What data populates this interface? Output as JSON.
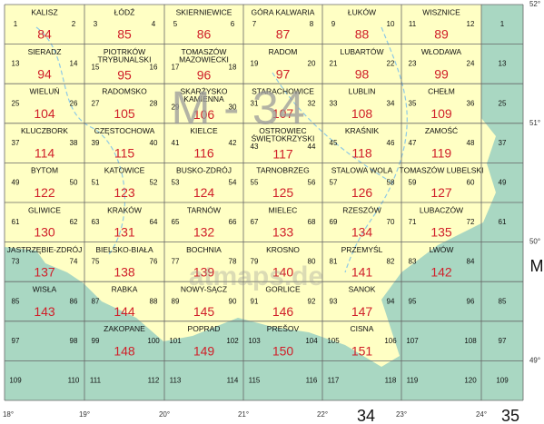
{
  "rows": [
    [
      {
        "name": [
          "KALISZ"
        ],
        "sheet": 84,
        "small": [
          1,
          2
        ]
      },
      {
        "name": [
          "ŁÓDŹ"
        ],
        "sheet": 85,
        "small": [
          3,
          4
        ]
      },
      {
        "name": [
          "SKIERNIEWICE"
        ],
        "sheet": 86,
        "small": [
          5,
          6
        ]
      },
      {
        "name": [
          "GÓRA KALWARIA"
        ],
        "sheet": 87,
        "small": [
          7,
          8
        ]
      },
      {
        "name": [
          "ŁUKÓW"
        ],
        "sheet": 88,
        "small": [
          9,
          10
        ]
      },
      {
        "name": [
          "WISZNICE"
        ],
        "sheet": 89,
        "small": [
          11,
          12
        ]
      }
    ],
    [
      {
        "name": [
          "SIERADZ"
        ],
        "sheet": 94,
        "small": [
          13,
          14
        ]
      },
      {
        "name": [
          "PIOTRKÓW",
          "TRYBUNALSKI"
        ],
        "sheet": 95,
        "small": [
          15,
          16
        ]
      },
      {
        "name": [
          "TOMASZÓW",
          "MAZOWIECKI"
        ],
        "sheet": 96,
        "small": [
          17,
          18
        ]
      },
      {
        "name": [
          "RADOM"
        ],
        "sheet": 97,
        "small": [
          19,
          20
        ]
      },
      {
        "name": [
          "LUBARTÓW"
        ],
        "sheet": 98,
        "small": [
          21,
          22
        ]
      },
      {
        "name": [
          "WŁODAWA"
        ],
        "sheet": 99,
        "small": [
          23,
          24
        ]
      }
    ],
    [
      {
        "name": [
          "WIELUŃ"
        ],
        "sheet": 104,
        "small": [
          25,
          26
        ]
      },
      {
        "name": [
          "RADOMSKO"
        ],
        "sheet": 105,
        "small": [
          27,
          28
        ]
      },
      {
        "name": [
          "SKARŻYSKO",
          "KAMIENNA"
        ],
        "sheet": 106,
        "small": [
          29,
          30
        ]
      },
      {
        "name": [
          "STARACHOWICE"
        ],
        "sheet": 107,
        "small": [
          31,
          32
        ]
      },
      {
        "name": [
          "LUBLIN"
        ],
        "sheet": 108,
        "small": [
          33,
          34
        ]
      },
      {
        "name": [
          "CHEŁM"
        ],
        "sheet": 109,
        "small": [
          35,
          36
        ]
      }
    ],
    [
      {
        "name": [
          "KLUCZBORK"
        ],
        "sheet": 114,
        "small": [
          37,
          38
        ]
      },
      {
        "name": [
          "CZĘSTOCHOWA"
        ],
        "sheet": 115,
        "small": [
          39,
          40
        ]
      },
      {
        "name": [
          "KIELCE"
        ],
        "sheet": 116,
        "small": [
          41,
          42
        ]
      },
      {
        "name": [
          "OSTROWIEC",
          "ŚWIĘTOKRZYSKI"
        ],
        "sheet": 117,
        "small": [
          43,
          44
        ]
      },
      {
        "name": [
          "KRAŚNIK"
        ],
        "sheet": 118,
        "small": [
          45,
          46
        ]
      },
      {
        "name": [
          "ZAMOŚĆ"
        ],
        "sheet": 119,
        "small": [
          47,
          48
        ]
      }
    ],
    [
      {
        "name": [
          "BYTOM"
        ],
        "sheet": 122,
        "small": [
          49,
          50
        ]
      },
      {
        "name": [
          "KATOWICE"
        ],
        "sheet": 123,
        "small": [
          51,
          52
        ]
      },
      {
        "name": [
          "BUSKO-ZDRÓJ"
        ],
        "sheet": 124,
        "small": [
          53,
          54
        ]
      },
      {
        "name": [
          "TARNOBRZEG"
        ],
        "sheet": 125,
        "small": [
          55,
          56
        ]
      },
      {
        "name": [
          "STALOWA WOLA"
        ],
        "sheet": 126,
        "small": [
          57,
          58
        ]
      },
      {
        "name": [
          "TOMASZÓW LUBELSKI"
        ],
        "sheet": 127,
        "small": [
          59,
          60
        ]
      }
    ],
    [
      {
        "name": [
          "GLIWICE"
        ],
        "sheet": 130,
        "small": [
          61,
          62
        ]
      },
      {
        "name": [
          "KRAKÓW"
        ],
        "sheet": 131,
        "small": [
          63,
          64
        ]
      },
      {
        "name": [
          "TARNÓW"
        ],
        "sheet": 132,
        "small": [
          65,
          66
        ]
      },
      {
        "name": [
          "MIELEC"
        ],
        "sheet": 133,
        "small": [
          67,
          68
        ]
      },
      {
        "name": [
          "RZESZÓW"
        ],
        "sheet": 134,
        "small": [
          69,
          70
        ]
      },
      {
        "name": [
          "LUBACZÓW"
        ],
        "sheet": 135,
        "small": [
          71,
          72
        ]
      }
    ],
    [
      {
        "name": [
          "JASTRZĘBIE-ZDRÓJ"
        ],
        "sheet": 137,
        "small": [
          73,
          74
        ]
      },
      {
        "name": [
          "BIELSKO-BIAŁA"
        ],
        "sheet": 138,
        "small": [
          75,
          76
        ]
      },
      {
        "name": [
          "BOCHNIA"
        ],
        "sheet": 139,
        "small": [
          77,
          78
        ]
      },
      {
        "name": [
          "KROSNO"
        ],
        "sheet": 140,
        "small": [
          79,
          80
        ]
      },
      {
        "name": [
          "PRZEMYŚL"
        ],
        "sheet": 141,
        "small": [
          81,
          82
        ]
      },
      {
        "name": [
          "LWÓW"
        ],
        "sheet": 142,
        "small": [
          83,
          84
        ]
      }
    ],
    [
      {
        "name": [
          "WISŁA"
        ],
        "sheet": 143,
        "small": [
          85,
          86
        ]
      },
      {
        "name": [
          "RABKA"
        ],
        "sheet": 144,
        "small": [
          87,
          88
        ]
      },
      {
        "name": [
          "NOWY-SĄCZ"
        ],
        "sheet": 145,
        "small": [
          89,
          90
        ]
      },
      {
        "name": [
          "GORLICE"
        ],
        "sheet": 146,
        "small": [
          91,
          92
        ]
      },
      {
        "name": [
          "SANOK"
        ],
        "sheet": 147,
        "small": [
          93,
          94
        ]
      },
      {
        "small": [
          95,
          96
        ]
      }
    ],
    [
      {
        "small": [
          97,
          98
        ]
      },
      {
        "name": [
          "ZAKOPANE"
        ],
        "sheet": 148,
        "small": [
          99,
          100
        ]
      },
      {
        "name": [
          "POPRAD"
        ],
        "sheet": 149,
        "small": [
          101,
          102
        ]
      },
      {
        "name": [
          "PREŠOV"
        ],
        "sheet": 150,
        "small": [
          103,
          104
        ]
      },
      {
        "name": [
          "CISNA"
        ],
        "sheet": 151,
        "small": [
          105,
          106
        ]
      },
      {
        "small": [
          107,
          108
        ]
      }
    ],
    [
      {
        "small": [
          109,
          110
        ]
      },
      {
        "small": [
          111,
          112
        ]
      },
      {
        "small": [
          113,
          114
        ]
      },
      {
        "small": [
          115,
          116
        ]
      },
      {
        "small": [
          117,
          118
        ]
      },
      {
        "small": [
          119,
          120
        ]
      }
    ]
  ],
  "side": [
    1,
    13,
    25,
    37,
    49,
    61,
    null,
    85,
    97,
    109
  ],
  "overlay_label": "M - 34",
  "watermark": "atmaps.de",
  "lat_labels": [
    "52°",
    "51°",
    "50°",
    "49°"
  ],
  "lon_labels": [
    "18°",
    "19°",
    "20°",
    "21°",
    "22°",
    "23°",
    "24°"
  ],
  "zone_labels": [
    "34",
    "35"
  ],
  "row_label": "M"
}
